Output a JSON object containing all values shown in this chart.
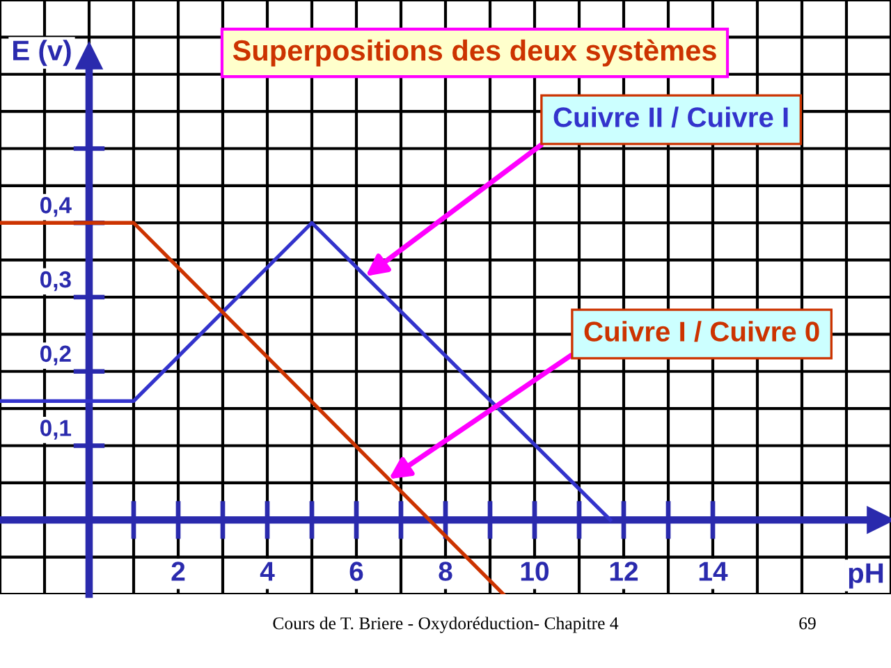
{
  "chart_data": {
    "type": "line",
    "title": "Superpositions des deux systèmes",
    "xlabel": "pH",
    "ylabel": "E (v)",
    "series": [
      {
        "name": "Cuivre II / Cuivre I",
        "color": "#3333cc",
        "x": [
          -2,
          1,
          5,
          11.7
        ],
        "values": [
          0.16,
          0.16,
          0.4,
          0
        ]
      },
      {
        "name": "Cuivre I / Cuivre 0",
        "color": "#cc3300",
        "x": [
          -2,
          1,
          9.3
        ],
        "values": [
          0.4,
          0.4,
          -0.1
        ]
      }
    ],
    "xlim": [
      -2,
      18
    ],
    "ylim": [
      -0.1,
      0.7
    ],
    "xticks": [
      {
        "value": 1,
        "label": null
      },
      2,
      {
        "value": 3,
        "label": null
      },
      4,
      {
        "value": 5,
        "label": null
      },
      6,
      {
        "value": 7,
        "label": null
      },
      8,
      {
        "value": 9,
        "label": null
      },
      10,
      {
        "value": 11,
        "label": null
      },
      12,
      {
        "value": 13,
        "label": null
      },
      14
    ],
    "yticks": [
      {
        "value": 0.1,
        "label": "0,1"
      },
      {
        "value": 0.2,
        "label": "0,2"
      },
      {
        "value": 0.3,
        "label": "0,3"
      },
      {
        "value": 0.4,
        "label": "0,4"
      },
      {
        "value": 0.5,
        "label": null
      }
    ],
    "ref_lines": [
      {
        "axis": "y",
        "value": 0,
        "color": "#2a2aad",
        "line_style": "solid"
      }
    ],
    "grid": true,
    "marker": "none",
    "line_style": "solid",
    "annotations": [
      "Cours de T. Briere - Oxydoréduction- Chapitre 4",
      "69"
    ]
  }
}
